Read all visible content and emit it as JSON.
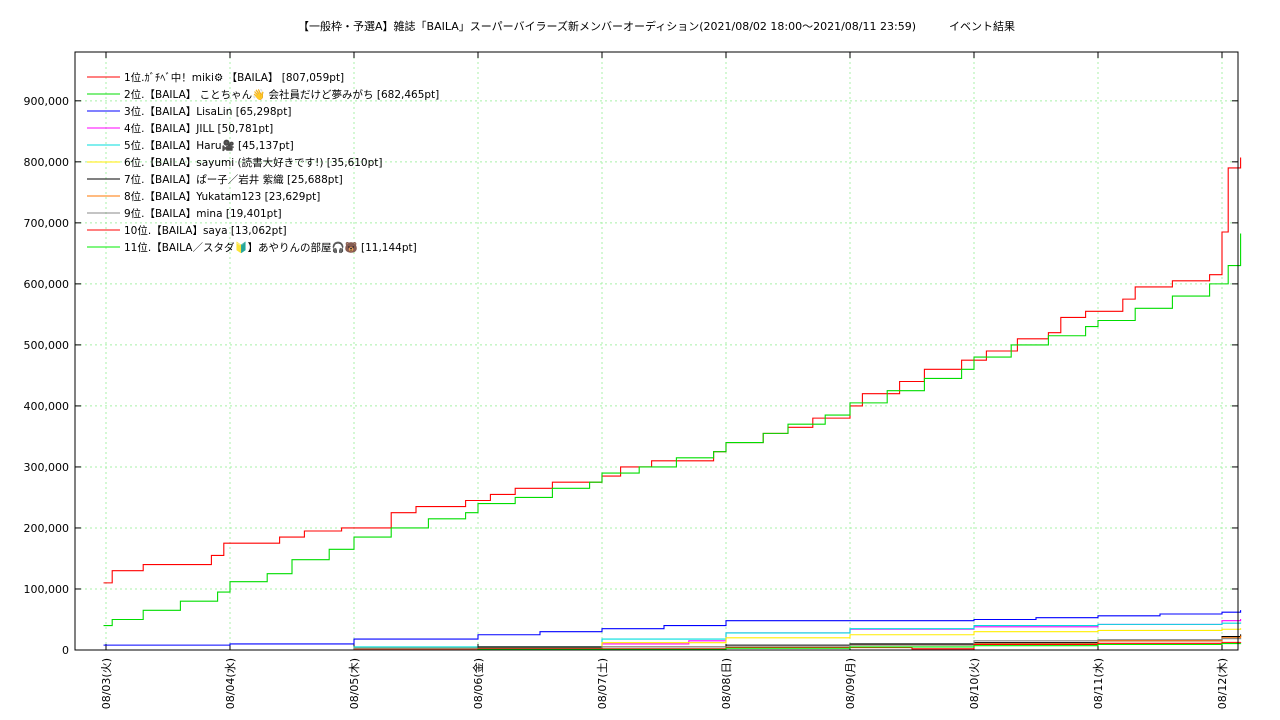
{
  "chart_data": {
    "type": "line",
    "title": "【一般枠・予選A】雑誌「BAILA」スーパーバイラーズ新メンバーオーディション(2021/08/02 18:00～2021/08/11 23:59)",
    "subtitle": "イベント結果",
    "xlabel": "",
    "ylabel": "",
    "x_tick_labels": [
      "08/03(火)",
      "08/04(水)",
      "08/05(木)",
      "08/06(金)",
      "08/07(土)",
      "08/08(日)",
      "08/09(月)",
      "08/10(火)",
      "08/11(水)",
      "08/12(木)"
    ],
    "y_tick_labels": [
      "0",
      "100,000",
      "200,000",
      "300,000",
      "400,000",
      "500,000",
      "600,000",
      "700,000",
      "800,000",
      "900,000"
    ],
    "xlim_days": [
      -0.2,
      9.1
    ],
    "ylim": [
      0,
      980000
    ],
    "grid": true,
    "legend_position": "top-left",
    "series": [
      {
        "name": "1位.ｶﾞﾁﾍﾞ中！miki⚙ 【BAILA】 [807,059pt]",
        "color": "#ff0000",
        "x": [
          -0.02,
          0.05,
          0.3,
          0.8,
          0.85,
          0.95,
          1.4,
          1.6,
          1.9,
          2.3,
          2.5,
          2.9,
          3.1,
          3.3,
          3.6,
          4.0,
          4.15,
          4.4,
          4.9,
          5.0,
          5.3,
          5.5,
          5.7,
          6.0,
          6.1,
          6.4,
          6.6,
          6.9,
          7.1,
          7.35,
          7.6,
          7.7,
          7.9,
          8.2,
          8.3,
          8.6,
          8.9,
          9.0,
          9.05,
          9.15
        ],
        "values": [
          110000,
          130000,
          140000,
          140000,
          155000,
          175000,
          185000,
          195000,
          200000,
          225000,
          235000,
          245000,
          255000,
          265000,
          275000,
          285000,
          300000,
          310000,
          325000,
          340000,
          355000,
          365000,
          380000,
          400000,
          420000,
          440000,
          460000,
          475000,
          490000,
          510000,
          520000,
          545000,
          555000,
          575000,
          595000,
          605000,
          615000,
          685000,
          790000,
          807059
        ]
      },
      {
        "name": "2位.【BAILA】 ことちゃん👋  会社員だけど夢みがち [682,465pt]",
        "color": "#00dd00",
        "x": [
          -0.02,
          0.05,
          0.3,
          0.6,
          0.9,
          1.0,
          1.3,
          1.5,
          1.8,
          2.0,
          2.3,
          2.6,
          2.9,
          3.0,
          3.3,
          3.6,
          3.9,
          4.0,
          4.3,
          4.6,
          4.9,
          5.0,
          5.3,
          5.5,
          5.8,
          6.0,
          6.3,
          6.6,
          6.9,
          7.0,
          7.3,
          7.6,
          7.9,
          8.0,
          8.3,
          8.6,
          8.9,
          9.05,
          9.15
        ],
        "values": [
          40000,
          50000,
          65000,
          80000,
          95000,
          112000,
          125000,
          148000,
          165000,
          185000,
          200000,
          215000,
          225000,
          240000,
          250000,
          265000,
          275000,
          290000,
          300000,
          315000,
          325000,
          340000,
          355000,
          370000,
          385000,
          405000,
          425000,
          445000,
          460000,
          480000,
          500000,
          515000,
          530000,
          540000,
          560000,
          580000,
          600000,
          630000,
          682465
        ]
      },
      {
        "name": "3位.【BAILA】LisaLin [65,298pt]",
        "color": "#0000ff",
        "x": [
          -0.02,
          1.0,
          2.0,
          3.0,
          3.5,
          4.0,
          4.5,
          5.0,
          6.0,
          7.0,
          7.5,
          8.0,
          8.5,
          9.0,
          9.15
        ],
        "values": [
          8000,
          10000,
          18000,
          25000,
          30000,
          35000,
          40000,
          48000,
          48000,
          50000,
          53000,
          56000,
          59000,
          62000,
          65298
        ]
      },
      {
        "name": "4位.【BAILA】JILL [50,781pt]",
        "color": "#ff00ff",
        "x": [
          -0.02,
          2.0,
          4.0,
          4.7,
          5.0,
          6.0,
          7.0,
          8.0,
          9.0,
          9.15
        ],
        "values": [
          0,
          2000,
          10000,
          15000,
          28000,
          34000,
          38000,
          42000,
          48000,
          50781
        ]
      },
      {
        "name": "5位.【BAILA】Haru🎥 [45,137pt]",
        "color": "#00dddd",
        "x": [
          -0.02,
          2.0,
          4.0,
          5.0,
          6.0,
          7.0,
          8.0,
          9.0,
          9.15
        ],
        "values": [
          0,
          5000,
          18000,
          28000,
          35000,
          40000,
          42000,
          44000,
          45137
        ]
      },
      {
        "name": "6位.【BAILA】sayumi (読書大好きです!) [35,610pt]",
        "color": "#ffee00",
        "x": [
          -0.02,
          2.0,
          4.0,
          5.0,
          6.0,
          7.0,
          8.0,
          9.0,
          9.15
        ],
        "values": [
          0,
          3000,
          12000,
          20000,
          25000,
          30000,
          32000,
          34000,
          35610
        ]
      },
      {
        "name": "7位.【BAILA】ぱー子／岩井 紫織 [25,688pt]",
        "color": "#000000",
        "x": [
          -0.02,
          3.0,
          5.0,
          6.0,
          7.0,
          8.0,
          9.0,
          9.15
        ],
        "values": [
          0,
          5000,
          8000,
          10000,
          12000,
          15000,
          22000,
          25688
        ]
      },
      {
        "name": "8位.【BAILA】Yukatam123 [23,629pt]",
        "color": "#ff7700",
        "x": [
          -0.02,
          2.0,
          4.0,
          6.0,
          7.0,
          8.0,
          9.0,
          9.15
        ],
        "values": [
          0,
          2000,
          5000,
          8000,
          10000,
          15000,
          20000,
          23629
        ]
      },
      {
        "name": "9位.【BAILA】mina [19,401pt]",
        "color": "#888888",
        "x": [
          -0.02,
          2.0,
          4.0,
          6.0,
          7.0,
          8.0,
          9.0,
          9.15
        ],
        "values": [
          0,
          3000,
          5000,
          8000,
          15000,
          17000,
          18500,
          19401
        ]
      },
      {
        "name": "10位.【BAILA】saya [13,062pt]",
        "color": "#ff0000",
        "x": [
          -0.02,
          3.0,
          5.0,
          6.5,
          7.0,
          8.0,
          9.0,
          9.15
        ],
        "values": [
          0,
          2000,
          4000,
          2000,
          9000,
          11000,
          12500,
          13062
        ]
      },
      {
        "name": "11位.【BAILA／スタダ🔰】あやりんの部屋🎧🐻 [11,144pt]",
        "color": "#00ee00",
        "x": [
          -0.02,
          3.0,
          5.0,
          6.0,
          7.0,
          8.0,
          9.0,
          9.15
        ],
        "values": [
          0,
          1000,
          3000,
          5000,
          7000,
          9000,
          10500,
          11144
        ]
      }
    ]
  }
}
